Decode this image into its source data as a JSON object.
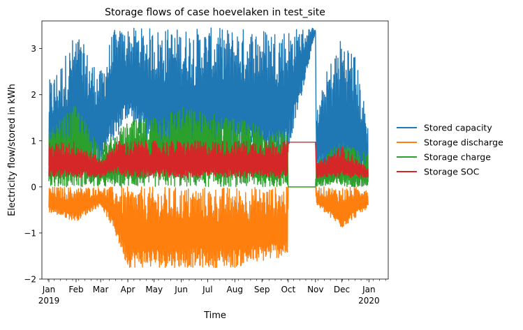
{
  "chart_data": {
    "type": "line",
    "title": "Storage flows of case hoevelaken in test_site",
    "xlabel": "Time",
    "ylabel": "Electricity flow/stored in kWh",
    "ylim": [
      -2,
      3.6
    ],
    "xlim": [
      "2018-12-24",
      "2020-01-23"
    ],
    "y_ticks": [
      {
        "value": -2,
        "label": "−2"
      },
      {
        "value": -1,
        "label": "−1"
      },
      {
        "value": 0,
        "label": "0"
      },
      {
        "value": 1,
        "label": "1"
      },
      {
        "value": 2,
        "label": "2"
      },
      {
        "value": 3,
        "label": "3"
      }
    ],
    "x_ticks": [
      {
        "date": "2019-01-01",
        "label": "Jan",
        "sublabel": "2019"
      },
      {
        "date": "2019-02-01",
        "label": "Feb",
        "sublabel": ""
      },
      {
        "date": "2019-03-01",
        "label": "Mar",
        "sublabel": ""
      },
      {
        "date": "2019-04-01",
        "label": "Apr",
        "sublabel": ""
      },
      {
        "date": "2019-05-01",
        "label": "May",
        "sublabel": ""
      },
      {
        "date": "2019-06-01",
        "label": "Jun",
        "sublabel": ""
      },
      {
        "date": "2019-07-01",
        "label": "Jul",
        "sublabel": ""
      },
      {
        "date": "2019-08-01",
        "label": "Aug",
        "sublabel": ""
      },
      {
        "date": "2019-09-01",
        "label": "Sep",
        "sublabel": ""
      },
      {
        "date": "2019-10-01",
        "label": "Oct",
        "sublabel": ""
      },
      {
        "date": "2019-11-01",
        "label": "Nov",
        "sublabel": ""
      },
      {
        "date": "2019-12-01",
        "label": "Dec",
        "sublabel": ""
      },
      {
        "date": "2020-01-01",
        "label": "Jan",
        "sublabel": "2020"
      }
    ],
    "grid": false,
    "legend_position": "right, outside",
    "series": [
      {
        "name": "Stored capacity",
        "color": "#1f77b4",
        "envelope": [
          {
            "date": "2019-01-01",
            "low": 0.1,
            "high": 2.3
          },
          {
            "date": "2019-01-15",
            "low": 0.2,
            "high": 2.7
          },
          {
            "date": "2019-02-01",
            "low": 0.2,
            "high": 3.4
          },
          {
            "date": "2019-02-15",
            "low": 0.3,
            "high": 2.9
          },
          {
            "date": "2019-03-01",
            "low": 0.5,
            "high": 2.5
          },
          {
            "date": "2019-03-15",
            "low": 0.9,
            "high": 3.4
          },
          {
            "date": "2019-04-01",
            "low": 1.5,
            "high": 3.45
          },
          {
            "date": "2019-05-01",
            "low": 0.7,
            "high": 3.45
          },
          {
            "date": "2019-06-01",
            "low": 0.6,
            "high": 3.45
          },
          {
            "date": "2019-07-01",
            "low": 0.6,
            "high": 3.45
          },
          {
            "date": "2019-08-01",
            "low": 0.6,
            "high": 3.45
          },
          {
            "date": "2019-09-01",
            "low": 0.6,
            "high": 3.45
          },
          {
            "date": "2019-09-30",
            "low": 0.6,
            "high": 3.45
          },
          {
            "date": "2019-11-01",
            "low": 3.35,
            "high": 3.45
          },
          {
            "date": "2019-11-02",
            "low": 0.3,
            "high": 1.6
          },
          {
            "date": "2019-11-15",
            "low": 0.3,
            "high": 2.6
          },
          {
            "date": "2019-12-01",
            "low": 0.2,
            "high": 3.3
          },
          {
            "date": "2019-12-15",
            "low": 0.2,
            "high": 3.0
          },
          {
            "date": "2019-12-31",
            "low": 0.1,
            "high": 1.4
          }
        ]
      },
      {
        "name": "Storage discharge",
        "color": "#ff7f0e",
        "envelope": [
          {
            "date": "2019-01-01",
            "low": -0.55,
            "high": 0
          },
          {
            "date": "2019-02-01",
            "low": -0.75,
            "high": 0
          },
          {
            "date": "2019-03-01",
            "low": -0.4,
            "high": 0
          },
          {
            "date": "2019-03-15",
            "low": -0.9,
            "high": 0
          },
          {
            "date": "2019-04-01",
            "low": -1.75,
            "high": 0
          },
          {
            "date": "2019-06-01",
            "low": -1.75,
            "high": 0
          },
          {
            "date": "2019-08-01",
            "low": -1.75,
            "high": 0
          },
          {
            "date": "2019-09-30",
            "low": -1.5,
            "high": 0
          },
          {
            "date": "2019-10-01",
            "low": 0,
            "high": 0
          },
          {
            "date": "2019-11-01",
            "low": 0,
            "high": 0
          },
          {
            "date": "2019-11-02",
            "low": -0.4,
            "high": 0
          },
          {
            "date": "2019-12-01",
            "low": -0.9,
            "high": 0
          },
          {
            "date": "2019-12-31",
            "low": -0.45,
            "high": 0
          }
        ]
      },
      {
        "name": "Storage charge",
        "color": "#2ca02c",
        "envelope": [
          {
            "date": "2019-01-01",
            "low": 0,
            "high": 1.2
          },
          {
            "date": "2019-02-01",
            "low": 0,
            "high": 1.8
          },
          {
            "date": "2019-03-01",
            "low": 0,
            "high": 0.9
          },
          {
            "date": "2019-04-01",
            "low": 0,
            "high": 1.4
          },
          {
            "date": "2019-06-01",
            "low": 0,
            "high": 1.75
          },
          {
            "date": "2019-08-01",
            "low": 0,
            "high": 1.5
          },
          {
            "date": "2019-09-30",
            "low": 0,
            "high": 1.2
          },
          {
            "date": "2019-10-01",
            "low": 0,
            "high": 0
          },
          {
            "date": "2019-11-01",
            "low": 0,
            "high": 0
          },
          {
            "date": "2019-11-02",
            "low": 0,
            "high": 0.6
          },
          {
            "date": "2019-12-01",
            "low": 0,
            "high": 1.0
          },
          {
            "date": "2019-12-31",
            "low": 0,
            "high": 0.7
          }
        ]
      },
      {
        "name": "Storage SOC",
        "color": "#d62728",
        "envelope": [
          {
            "date": "2019-01-01",
            "low": 0.2,
            "high": 0.95
          },
          {
            "date": "2019-02-01",
            "low": 0.2,
            "high": 1.0
          },
          {
            "date": "2019-03-01",
            "low": 0.2,
            "high": 0.6
          },
          {
            "date": "2019-03-20",
            "low": 0.3,
            "high": 1.0
          },
          {
            "date": "2019-04-01",
            "low": 0.2,
            "high": 1.0
          },
          {
            "date": "2019-06-01",
            "low": 0.2,
            "high": 1.0
          },
          {
            "date": "2019-09-30",
            "low": 0.2,
            "high": 1.0
          },
          {
            "date": "2019-10-01",
            "low": 0.97,
            "high": 0.97
          },
          {
            "date": "2019-11-01",
            "low": 0.97,
            "high": 0.97
          },
          {
            "date": "2019-11-02",
            "low": 0.2,
            "high": 0.5
          },
          {
            "date": "2019-12-01",
            "low": 0.2,
            "high": 0.9
          },
          {
            "date": "2019-12-31",
            "low": 0.2,
            "high": 0.4
          }
        ]
      }
    ]
  }
}
